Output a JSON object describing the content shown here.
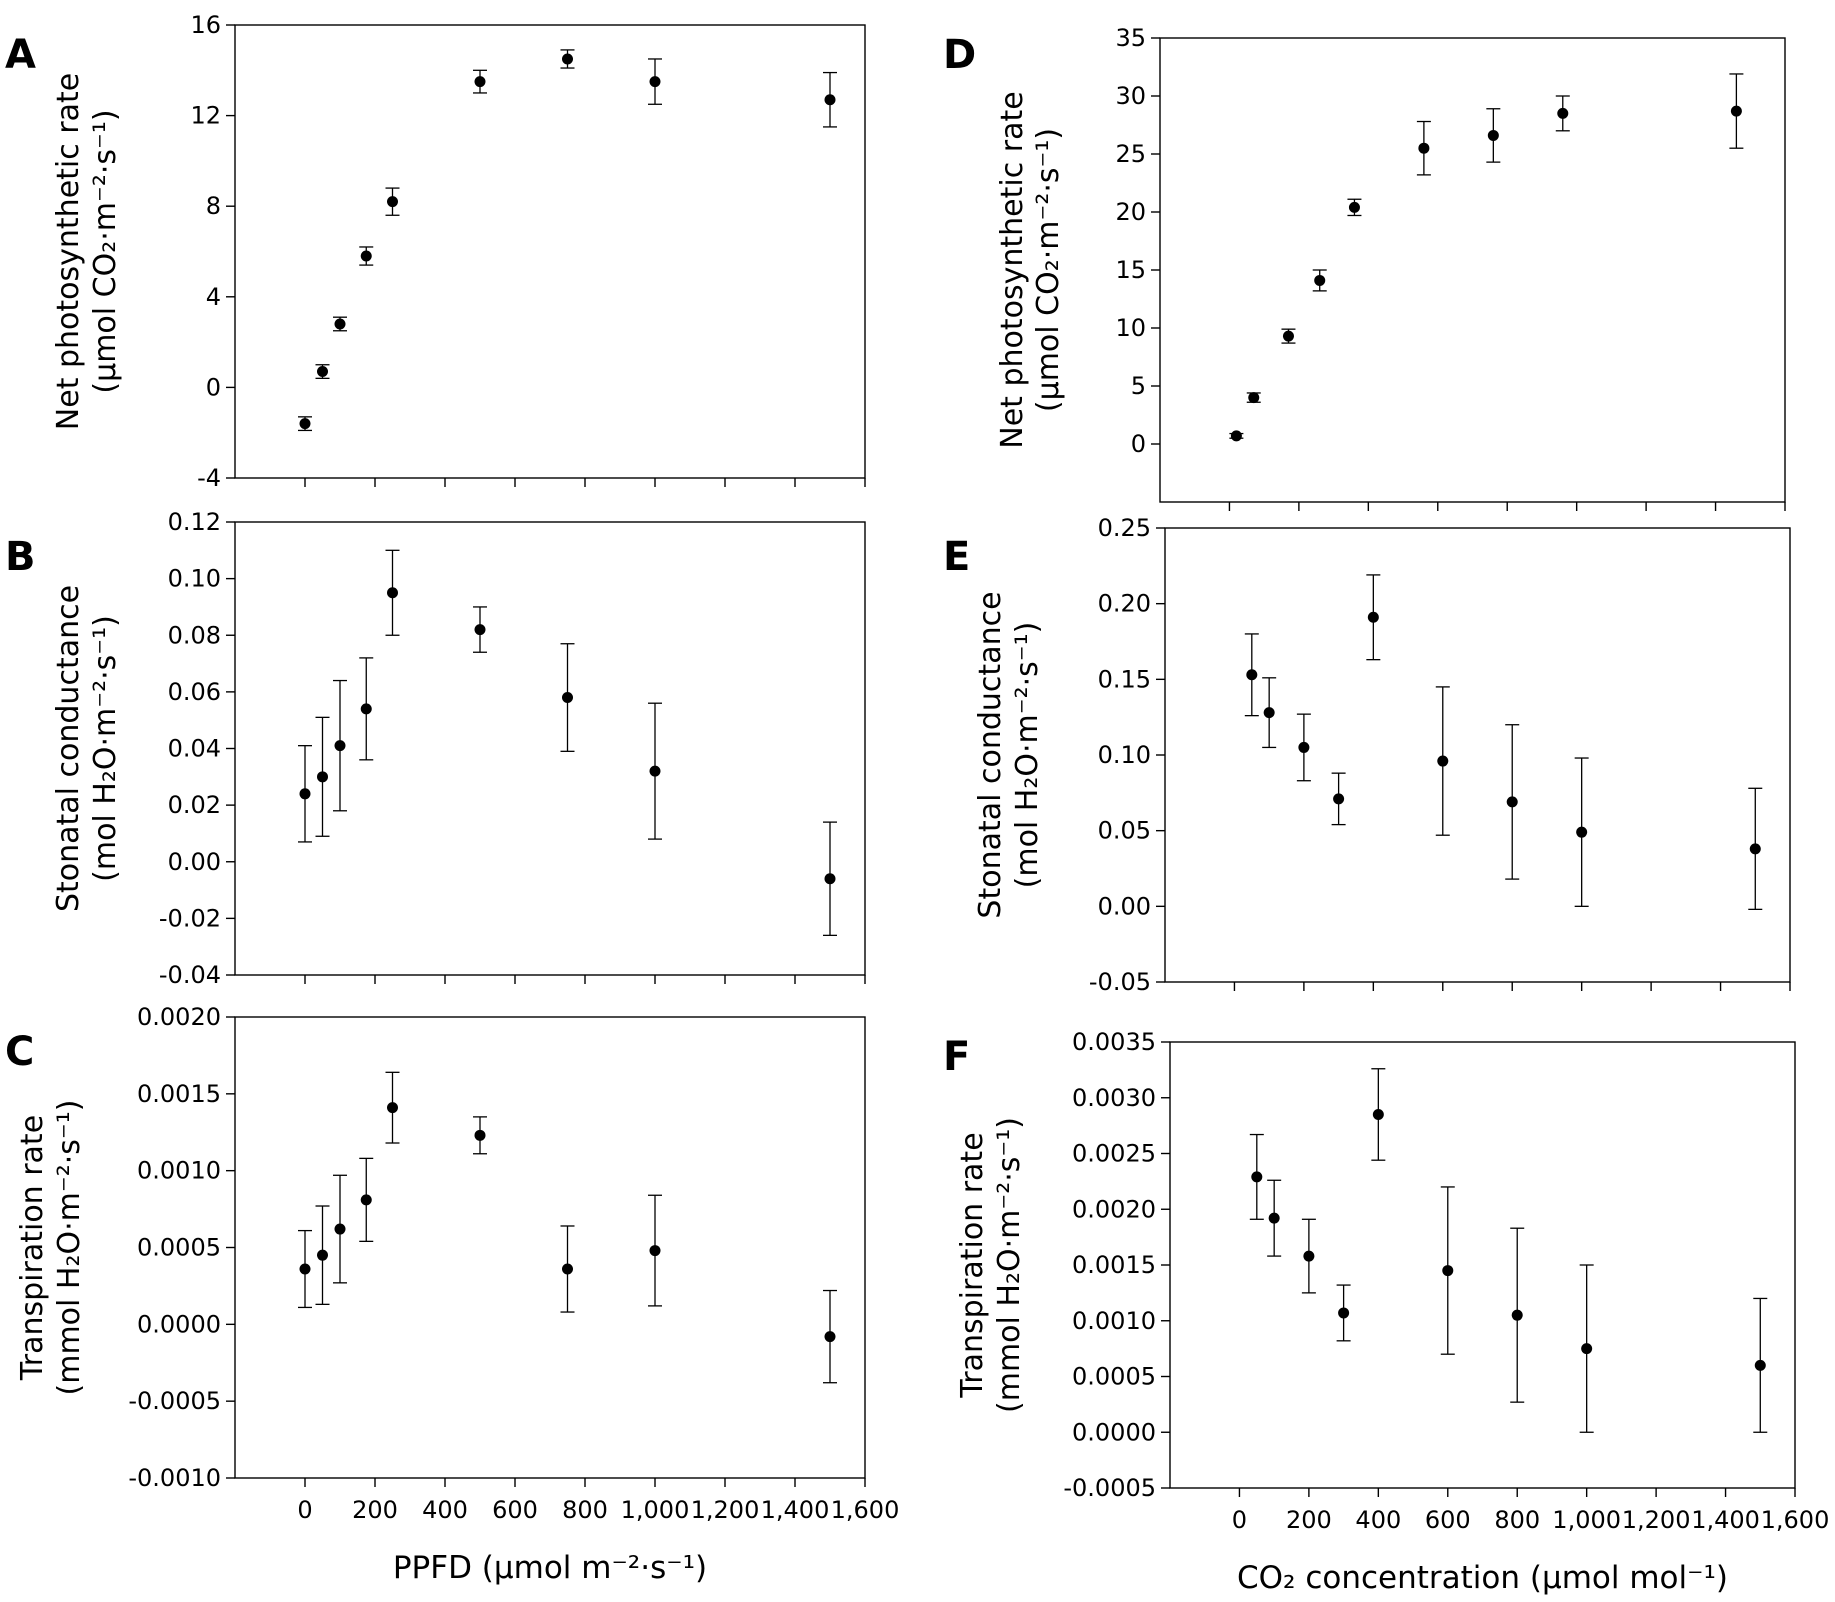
{
  "chart_data": [
    {
      "type": "scatter",
      "panel_label": "A",
      "ylabel_lines": [
        "Net photosynthetic rate",
        "(μmol CO₂·m⁻²·s⁻¹)"
      ],
      "xlabel": "",
      "ylim": [
        -4,
        16
      ],
      "yticks": [
        -4,
        0,
        4,
        8,
        12,
        16
      ],
      "xlim": [
        -200,
        1600
      ],
      "x": [
        0,
        50,
        100,
        175,
        250,
        500,
        750,
        1000,
        1500
      ],
      "y": [
        -1.6,
        0.7,
        2.8,
        5.8,
        8.2,
        13.5,
        14.5,
        13.5,
        12.7
      ],
      "err": [
        0.3,
        0.3,
        0.3,
        0.4,
        0.6,
        0.5,
        0.4,
        1.0,
        1.2
      ],
      "grid": false
    },
    {
      "type": "scatter",
      "panel_label": "B",
      "ylabel_lines": [
        "Stonatal conductance",
        "(mol H₂O·m⁻²·s⁻¹)"
      ],
      "xlabel": "",
      "ylim": [
        -0.04,
        0.12
      ],
      "yticks": [
        "-0.04",
        "-0.02",
        "0.00",
        "0.02",
        "0.04",
        "0.06",
        "0.08",
        "0.10",
        "0.12"
      ],
      "xlim": [
        -200,
        1600
      ],
      "x": [
        0,
        50,
        100,
        175,
        250,
        500,
        750,
        1000,
        1500
      ],
      "y": [
        0.024,
        0.03,
        0.041,
        0.054,
        0.095,
        0.082,
        0.058,
        0.032,
        -0.006
      ],
      "err": [
        0.017,
        0.021,
        0.023,
        0.018,
        0.015,
        0.008,
        0.019,
        0.024,
        0.02
      ],
      "grid": false
    },
    {
      "type": "scatter",
      "panel_label": "C",
      "ylabel_lines": [
        "Transpiration rate",
        "(mmol H₂O·m⁻²·s⁻¹)"
      ],
      "xlabel": "PPFD (μmol m⁻²·s⁻¹)",
      "ylim": [
        -0.001,
        0.002
      ],
      "yticks": [
        "-0.0010",
        "-0.0005",
        "0.0000",
        "0.0005",
        "0.0010",
        "0.0015",
        "0.0020"
      ],
      "xlim": [
        -200,
        1600
      ],
      "xticks": [
        "0",
        "200",
        "400",
        "600",
        "800",
        "1,000",
        "1,200",
        "1,400",
        "1,600"
      ],
      "x": [
        0,
        50,
        100,
        175,
        250,
        500,
        750,
        1000,
        1500
      ],
      "y": [
        0.00036,
        0.00045,
        0.00062,
        0.00081,
        0.00141,
        0.00123,
        0.00036,
        0.00048,
        -8e-05
      ],
      "err": [
        0.00025,
        0.00032,
        0.00035,
        0.00027,
        0.00023,
        0.00012,
        0.00028,
        0.00036,
        0.0003
      ],
      "grid": false
    },
    {
      "type": "scatter",
      "panel_label": "D",
      "ylabel_lines": [
        "Net photosynthetic rate",
        "(μmol CO₂·m⁻²·s⁻¹)"
      ],
      "xlabel": "",
      "ylim": [
        -5,
        35
      ],
      "yticks": [
        0,
        5,
        10,
        15,
        20,
        25,
        30,
        35
      ],
      "xlim": [
        -200,
        1600
      ],
      "x": [
        20,
        70,
        170,
        260,
        360,
        560,
        760,
        960,
        1460
      ],
      "y": [
        0.7,
        4.0,
        9.3,
        14.1,
        20.4,
        25.5,
        26.6,
        28.5,
        28.7
      ],
      "err": [
        0.2,
        0.4,
        0.6,
        0.9,
        0.7,
        2.3,
        2.3,
        1.5,
        3.2
      ],
      "grid": false
    },
    {
      "type": "scatter",
      "panel_label": "E",
      "ylabel_lines": [
        "Stonatal conductance",
        "(mol H₂O·m⁻²·s⁻¹)"
      ],
      "xlabel": "",
      "ylim": [
        -0.05,
        0.25
      ],
      "yticks": [
        "-0.05",
        "0.00",
        "0.05",
        "0.10",
        "0.15",
        "0.20",
        "0.25"
      ],
      "xlim": [
        -200,
        1600
      ],
      "x": [
        50,
        100,
        200,
        300,
        400,
        600,
        800,
        1000,
        1500
      ],
      "y": [
        0.153,
        0.128,
        0.105,
        0.071,
        0.191,
        0.096,
        0.069,
        0.049,
        0.038
      ],
      "err": [
        0.027,
        0.023,
        0.022,
        0.017,
        0.028,
        0.049,
        0.051,
        0.049,
        0.04
      ],
      "grid": false
    },
    {
      "type": "scatter",
      "panel_label": "F",
      "ylabel_lines": [
        "Transpiration rate",
        "(mmol H₂O·m⁻²·s⁻¹)"
      ],
      "xlabel": "CO₂ concentration (μmol mol⁻¹)",
      "ylim": [
        -0.0005,
        0.0035
      ],
      "yticks": [
        "-0.0005",
        "0.0000",
        "0.0005",
        "0.0010",
        "0.0015",
        "0.0020",
        "0.0025",
        "0.0030",
        "0.0035"
      ],
      "xlim": [
        -200,
        1600
      ],
      "xticks": [
        "0",
        "200",
        "400",
        "600",
        "800",
        "1,000",
        "1,200",
        "1,400",
        "1,600"
      ],
      "x": [
        50,
        100,
        200,
        300,
        400,
        600,
        800,
        1000,
        1500
      ],
      "y": [
        0.00229,
        0.00192,
        0.00158,
        0.00107,
        0.00285,
        0.00145,
        0.00105,
        0.00075,
        0.0006
      ],
      "err": [
        0.00038,
        0.00034,
        0.00033,
        0.00025,
        0.00041,
        0.00075,
        0.00078,
        0.00075,
        0.0006
      ],
      "grid": false
    }
  ]
}
